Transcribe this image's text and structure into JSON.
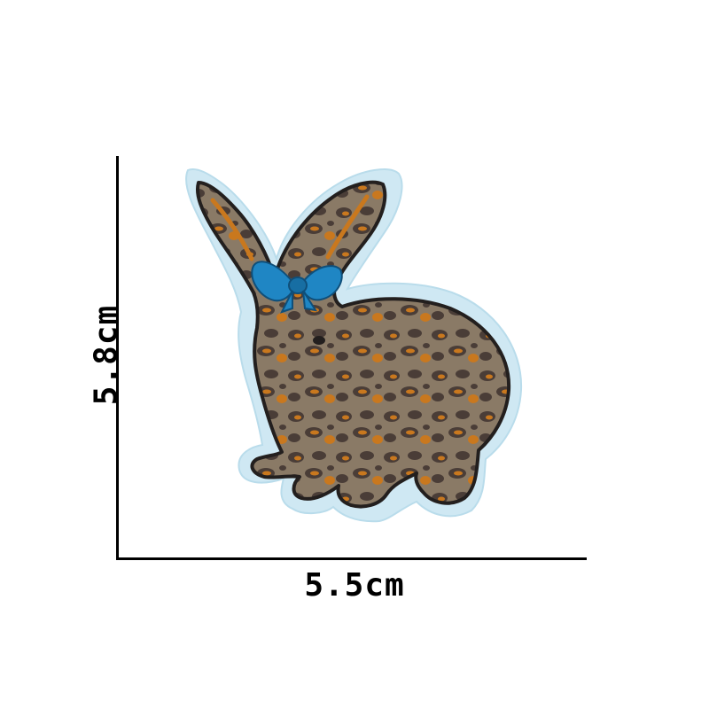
{
  "dimensions": {
    "width_label": "5.5cm",
    "height_label": "5.8cm"
  },
  "colors": {
    "backing": "#cfe8f3",
    "outline": "#231f1e",
    "base": "#8a7a66",
    "spot_dark": "#4a3d37",
    "spot_orange": "#c9781e",
    "bow": "#1f86c4"
  },
  "patch": {
    "subject": "rabbit-icon"
  }
}
